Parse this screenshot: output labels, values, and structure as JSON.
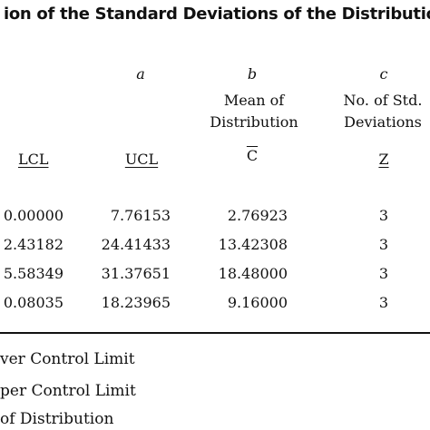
{
  "title": "ion of the Standard Deviations of the Distribution",
  "letters": {
    "a": "a",
    "b": "b",
    "c": "c"
  },
  "headers": {
    "b_line1": "Mean of",
    "b_line2": "Distribution",
    "c_line1": "No. of Std.",
    "c_line2": "Deviations",
    "lcl": "LCL",
    "ucl": "UCL",
    "cbar": "C",
    "z": "Z"
  },
  "rows": [
    [
      "0.00000",
      "7.76153",
      "2.76923",
      "3"
    ],
    [
      "2.43182",
      "24.41433",
      "13.42308",
      "3"
    ],
    [
      "5.58349",
      "31.37651",
      "18.48000",
      "3"
    ],
    [
      "0.08035",
      "18.23965",
      "9.16000",
      "3"
    ]
  ],
  "footnotes": [
    "ver Control Limit",
    "per Control Limit",
    "of Distribution"
  ]
}
